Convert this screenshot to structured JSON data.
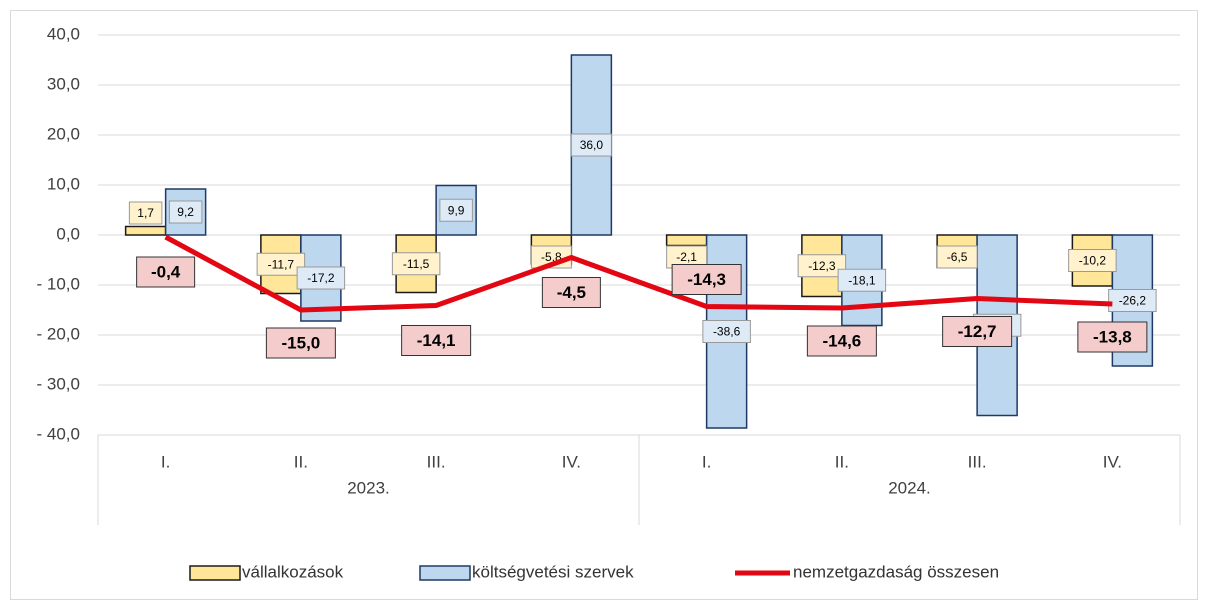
{
  "chart_data": {
    "type": "bar-line",
    "categories": [
      "I.",
      "II.",
      "III.",
      "IV.",
      "I.",
      "II.",
      "III.",
      "IV."
    ],
    "groups": [
      {
        "label": "2023.",
        "span": 4
      },
      {
        "label": "2024.",
        "span": 4
      }
    ],
    "series": [
      {
        "name": "vállalkozások",
        "type": "bar",
        "color": "#ffe699",
        "border": "#1a1a1a",
        "values": [
          1.7,
          -11.7,
          -11.5,
          -5.8,
          -2.1,
          -12.3,
          -6.5,
          -10.2
        ],
        "value_labels": [
          "1,7",
          "-11,7",
          "-11,5",
          "-5,8",
          "-2,1",
          "-12,3",
          "-6,5",
          "-10,2"
        ]
      },
      {
        "name": "költségvetési szervek",
        "type": "bar",
        "color": "#bdd7ee",
        "border": "#1f3864",
        "values": [
          9.2,
          -17.2,
          9.9,
          36.0,
          -38.6,
          -18.1,
          -36.1,
          -26.2
        ],
        "value_labels": [
          "9,2",
          "-17,2",
          "9,9",
          "36,0",
          "-38,6",
          "-18,1",
          "-36,1",
          "-26,2"
        ]
      },
      {
        "name": "nemzetgazdaság összesen",
        "type": "line",
        "color": "#e30613",
        "values": [
          -0.4,
          -15.0,
          -14.1,
          -4.5,
          -14.3,
          -14.6,
          -12.7,
          -13.8
        ],
        "value_labels": [
          "-0,4",
          "-15,0",
          "-14,1",
          "-4,5",
          "-14,3",
          "-14,6",
          "-12,7",
          "-13,8"
        ]
      }
    ],
    "ylim": [
      -40,
      40
    ],
    "yticks": [
      {
        "value": 40,
        "label": "40,0"
      },
      {
        "value": 30,
        "label": "30,0"
      },
      {
        "value": 20,
        "label": "20,0"
      },
      {
        "value": 10,
        "label": "10,0"
      },
      {
        "value": 0,
        "label": "0,0"
      },
      {
        "value": -10,
        "label": "- 10,0"
      },
      {
        "value": -20,
        "label": "- 20,0"
      },
      {
        "value": -30,
        "label": "- 30,0"
      },
      {
        "value": -40,
        "label": "- 40,0"
      }
    ],
    "grid": true,
    "legend": "bottom"
  }
}
